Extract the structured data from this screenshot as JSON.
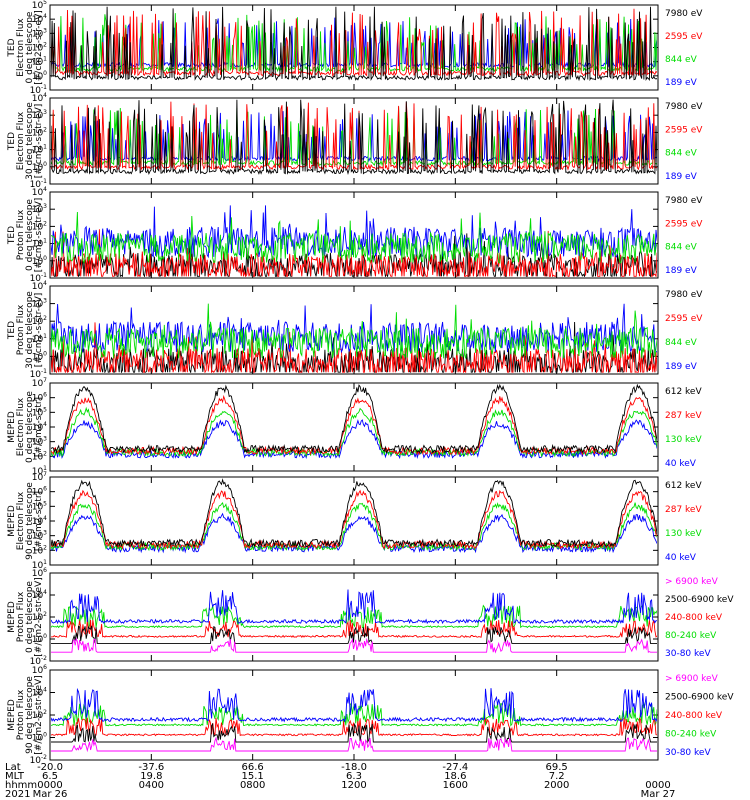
{
  "chart_data": {
    "type": "line",
    "x_axis": {
      "ticks": [
        "0000",
        "0400",
        "0800",
        "1200",
        "1600",
        "2000",
        "0000"
      ],
      "bottom_left_labels": [
        "Lat",
        "MLT",
        "hhmm",
        "2021"
      ],
      "rows": {
        "lat": [
          "-20.0",
          "-37.6",
          "66.6",
          "-18.0",
          "-27.4",
          "69.5",
          ""
        ],
        "mlt": [
          "6.5",
          "19.8",
          "15.1",
          "6.3",
          "18.6",
          "7.2",
          ""
        ],
        "hhmm": [
          "0000",
          "0400",
          "0800",
          "1200",
          "1600",
          "2000",
          "0000"
        ],
        "date": [
          "Mar 26",
          "",
          "",
          "",
          "",
          "",
          "Mar 27"
        ]
      }
    },
    "panels": [
      {
        "ylabel": [
          "TED",
          "Electron Flux",
          "0 deg telescope",
          "[#/cm2-s-str-eV]"
        ],
        "ytick_exp": [
          -1,
          0,
          1,
          2,
          3,
          4,
          5
        ],
        "series": [
          {
            "name": "7980 eV",
            "color": "#000000"
          },
          {
            "name": "2595 eV",
            "color": "#ff0000"
          },
          {
            "name": "844 eV",
            "color": "#00dd00"
          },
          {
            "name": "189 eV",
            "color": "#0000ff"
          }
        ]
      },
      {
        "ylabel": [
          "TED",
          "Electron Flux",
          "30 deg telescope",
          "[#/cm2-s-str-eV]"
        ],
        "ytick_exp": [
          -1,
          0,
          1,
          2,
          3,
          4
        ],
        "series": [
          {
            "name": "7980 eV",
            "color": "#000000"
          },
          {
            "name": "2595 eV",
            "color": "#ff0000"
          },
          {
            "name": "844 eV",
            "color": "#00dd00"
          },
          {
            "name": "189 eV",
            "color": "#0000ff"
          }
        ]
      },
      {
        "ylabel": [
          "TED",
          "Proton Flux",
          "0 deg telescope",
          "[#/cm2-s-str-eV]"
        ],
        "ytick_exp": [
          -1,
          0,
          1,
          2,
          3,
          4
        ],
        "series": [
          {
            "name": "7980 eV",
            "color": "#000000"
          },
          {
            "name": "2595 eV",
            "color": "#ff0000"
          },
          {
            "name": "844 eV",
            "color": "#00dd00"
          },
          {
            "name": "189 eV",
            "color": "#0000ff"
          }
        ]
      },
      {
        "ylabel": [
          "TED",
          "Proton Flux",
          "30 deg telescope",
          "[#/cm2-s-str-eV]"
        ],
        "ytick_exp": [
          -1,
          0,
          1,
          2,
          3,
          4
        ],
        "series": [
          {
            "name": "7980 eV",
            "color": "#000000"
          },
          {
            "name": "2595 eV",
            "color": "#ff0000"
          },
          {
            "name": "844 eV",
            "color": "#00dd00"
          },
          {
            "name": "189 eV",
            "color": "#0000ff"
          }
        ]
      },
      {
        "ylabel": [
          "MEPED",
          "Electron Flux",
          "0 deg telescope",
          "[#/cm2-s-str]"
        ],
        "ytick_exp": [
          1,
          2,
          3,
          4,
          5,
          6,
          7
        ],
        "series": [
          {
            "name": "612 keV",
            "color": "#000000"
          },
          {
            "name": "287 keV",
            "color": "#ff0000"
          },
          {
            "name": "130 keV",
            "color": "#00dd00"
          },
          {
            "name": "40 keV",
            "color": "#0000ff"
          }
        ]
      },
      {
        "ylabel": [
          "MEPED",
          "Electron Flux",
          "90 deg telescope",
          "[#/cm2-s-str]"
        ],
        "ytick_exp": [
          1,
          2,
          3,
          4,
          5,
          6,
          7
        ],
        "series": [
          {
            "name": "612 keV",
            "color": "#000000"
          },
          {
            "name": "287 keV",
            "color": "#ff0000"
          },
          {
            "name": "130 keV",
            "color": "#00dd00"
          },
          {
            "name": "40 keV",
            "color": "#0000ff"
          }
        ]
      },
      {
        "ylabel": [
          "MEPED",
          "Proton Flux",
          "0 deg telescope",
          "[#/cm2-s-str-keV]"
        ],
        "ytick_exp": [
          -2,
          0,
          2,
          4,
          6
        ],
        "series": [
          {
            "name": "> 6900 keV",
            "color": "#ff00ff"
          },
          {
            "name": "2500-6900 keV",
            "color": "#000000"
          },
          {
            "name": "240-800 keV",
            "color": "#ff0000"
          },
          {
            "name": "80-240 keV",
            "color": "#00dd00"
          },
          {
            "name": "30-80 keV",
            "color": "#0000ff"
          }
        ]
      },
      {
        "ylabel": [
          "MEPED",
          "Proton Flux",
          "90 deg telescope",
          "[#/cm2-s-str-keV]"
        ],
        "ytick_exp": [
          -2,
          0,
          2,
          4,
          6
        ],
        "series": [
          {
            "name": "> 6900 keV",
            "color": "#ff00ff"
          },
          {
            "name": "2500-6900 keV",
            "color": "#000000"
          },
          {
            "name": "240-800 keV",
            "color": "#ff0000"
          },
          {
            "name": "80-240 keV",
            "color": "#00dd00"
          },
          {
            "name": "30-80 keV",
            "color": "#0000ff"
          }
        ]
      }
    ]
  }
}
